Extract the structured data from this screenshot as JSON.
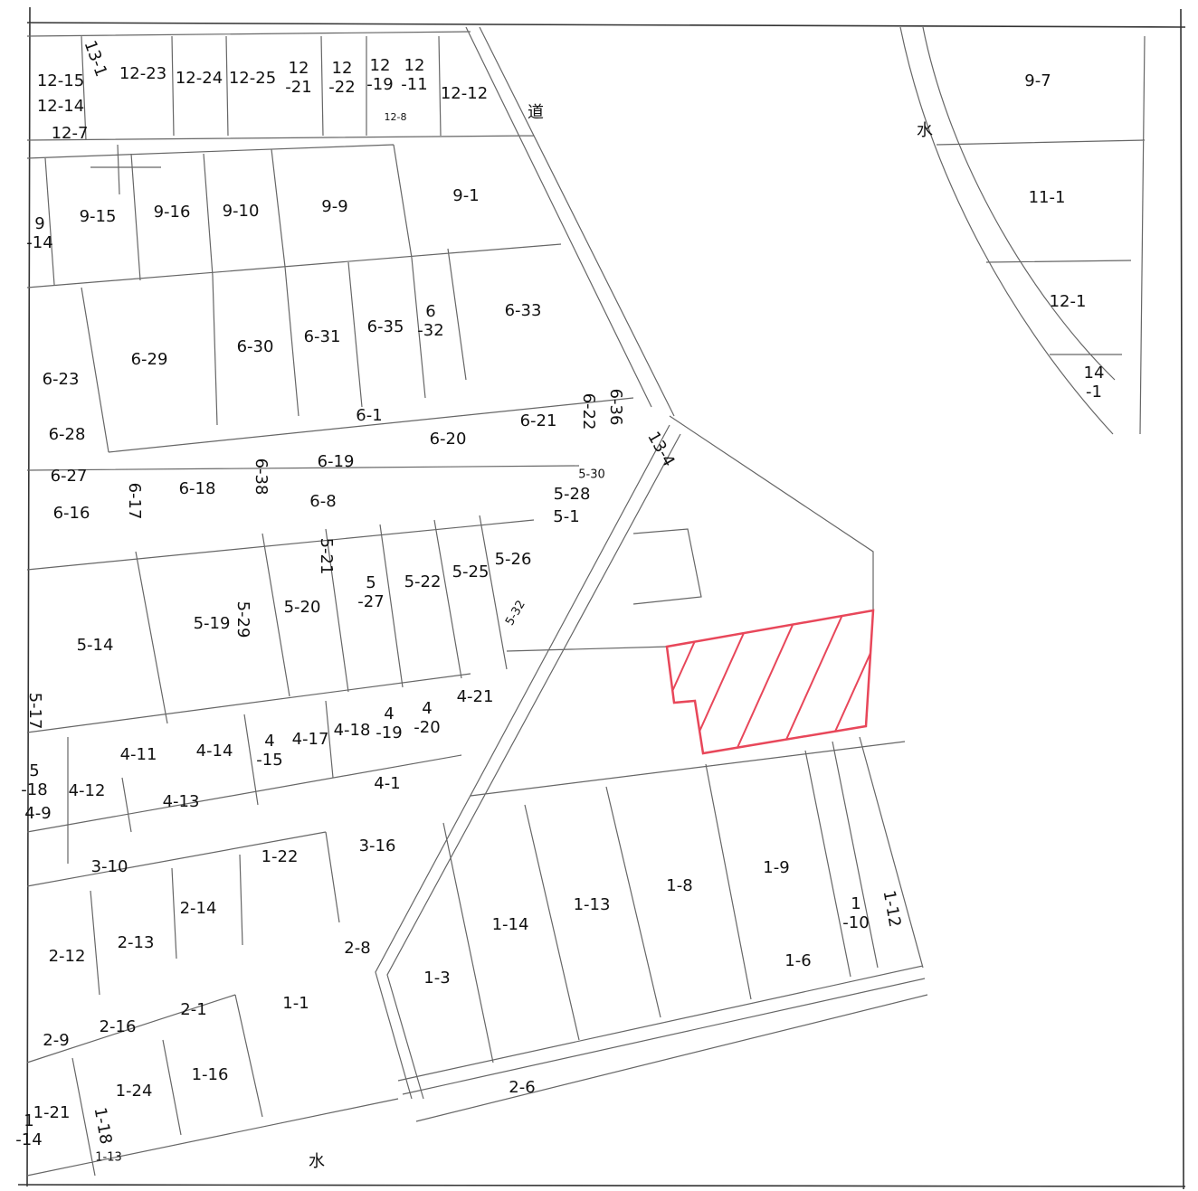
{
  "labels": [
    [
      "12-15"
    ],
    [
      "12-14"
    ],
    [
      "12-7"
    ],
    [
      "13-1"
    ],
    [
      "12-23"
    ],
    [
      "12-24"
    ],
    [
      "12-25"
    ],
    [
      "12",
      "-21"
    ],
    [
      "12",
      "-22"
    ],
    [
      "12",
      "-19"
    ],
    [
      "12",
      "-11"
    ],
    [
      "12-12"
    ],
    [
      "12-8"
    ],
    [
      "道"
    ],
    [
      "9-15"
    ],
    [
      "9-16"
    ],
    [
      "9-10"
    ],
    [
      "9-9"
    ],
    [
      "9-1"
    ],
    [
      "9",
      "-14"
    ],
    [
      "6-29"
    ],
    [
      "6-30"
    ],
    [
      "6-31"
    ],
    [
      "6-35"
    ],
    [
      "6",
      "-32"
    ],
    [
      "6-33"
    ],
    [
      "6-23"
    ],
    [
      "6-28"
    ],
    [
      "6-1"
    ],
    [
      "6-20"
    ],
    [
      "6-21"
    ],
    [
      "6-22"
    ],
    [
      "6-36"
    ],
    [
      "6-27"
    ],
    [
      "6-19"
    ],
    [
      "6-38"
    ],
    [
      "6-18"
    ],
    [
      "6-17"
    ],
    [
      "6-16"
    ],
    [
      "6-8"
    ],
    [
      "5-30"
    ],
    [
      "5-28"
    ],
    [
      "5-1"
    ],
    [
      "13-4"
    ],
    [
      "5-21"
    ],
    [
      "5",
      "-27"
    ],
    [
      "5-22"
    ],
    [
      "5-25"
    ],
    [
      "5-26"
    ],
    [
      "5-20"
    ],
    [
      "5-29"
    ],
    [
      "5-19"
    ],
    [
      "5-32"
    ],
    [
      "5-14"
    ],
    [
      "5-17"
    ],
    [
      "4-21"
    ],
    [
      "4",
      "-20"
    ],
    [
      "4",
      "-19"
    ],
    [
      "4-18"
    ],
    [
      "4-17"
    ],
    [
      "4",
      "-15"
    ],
    [
      "4-14"
    ],
    [
      "4-11"
    ],
    [
      "5",
      "-18"
    ],
    [
      "4-12"
    ],
    [
      "4-13"
    ],
    [
      "4-9"
    ],
    [
      "4-1"
    ],
    [
      "3-16"
    ],
    [
      "1-22"
    ],
    [
      "3-10"
    ],
    [
      "2-14"
    ],
    [
      "2-13"
    ],
    [
      "2-12"
    ],
    [
      "2-8"
    ],
    [
      "1-14"
    ],
    [
      "1-13"
    ],
    [
      "1-8"
    ],
    [
      "1-9"
    ],
    [
      "1",
      "-10"
    ],
    [
      "1-12"
    ],
    [
      "1-6"
    ],
    [
      "1-3"
    ],
    [
      "1-1"
    ],
    [
      "2-1"
    ],
    [
      "2-16"
    ],
    [
      "2-9"
    ],
    [
      "1-16"
    ],
    [
      "1-24"
    ],
    [
      "2-6"
    ],
    [
      "1-21"
    ],
    [
      "1",
      "-14"
    ],
    [
      "1-18"
    ],
    [
      "1-13"
    ],
    [
      "水"
    ],
    [
      "9-7"
    ],
    [
      "水"
    ],
    [
      "11-1"
    ],
    [
      "12-1"
    ],
    [
      "14",
      "-1"
    ]
  ]
}
